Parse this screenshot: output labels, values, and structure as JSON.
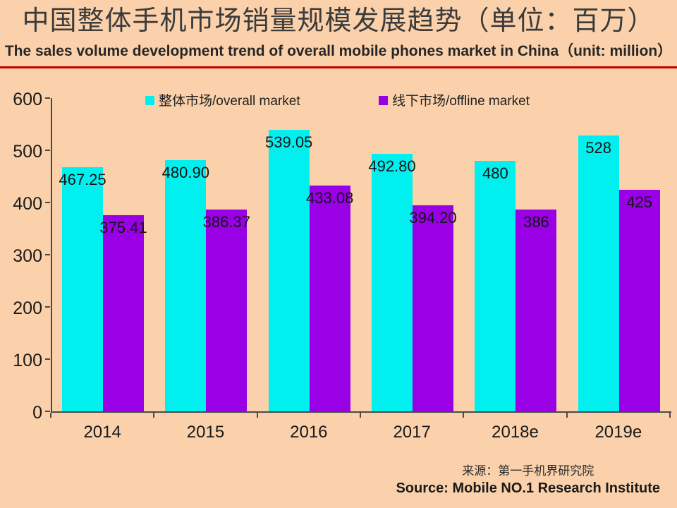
{
  "slide": {
    "title": "中国整体手机市场销量规模发展趋势（单位：百万）",
    "subtitle": "The sales volume development trend of overall mobile phones market in China（unit: million）",
    "source_line1": "来源：第一手机界研究院",
    "source_line2": "Source: Mobile NO.1 Research Institute",
    "colors": {
      "background": "#FBD1AB",
      "divider_red": "#C00000",
      "axis": "#4A4A4A",
      "overall_market_cyan": "#00F0F0",
      "offline_market_purple": "#9900E6"
    }
  },
  "chart_data": {
    "type": "bar",
    "title": "中国整体手机市场销量规模发展趋势（单位：百万）",
    "subtitle": "The sales volume development trend of overall mobile phones market in China（unit: million）",
    "categories": [
      "2014",
      "2015",
      "2016",
      "2017",
      "2018e",
      "2019e"
    ],
    "series": [
      {
        "name": "整体市场/overall market",
        "key": "overall-market",
        "color": "#00F0F0",
        "values": [
          467.25,
          480.9,
          539.05,
          492.8,
          480,
          528
        ],
        "labels": [
          "467.25",
          "480.90",
          "539.05",
          "492.80",
          "480",
          "528"
        ]
      },
      {
        "name": "线下市场/offline market",
        "key": "offline-market",
        "color": "#9900E6",
        "values": [
          375.41,
          386.37,
          433.08,
          394.2,
          386,
          425
        ],
        "labels": [
          "375.41",
          "386.37",
          "433.08",
          "394.20",
          "386",
          "425"
        ]
      }
    ],
    "ylim": [
      0,
      600
    ],
    "yticks": [
      0,
      100,
      200,
      300,
      400,
      500,
      600
    ],
    "xlabel": "",
    "ylabel": "",
    "grid": false,
    "legend_position": "top",
    "data_labels": "inside-end"
  }
}
